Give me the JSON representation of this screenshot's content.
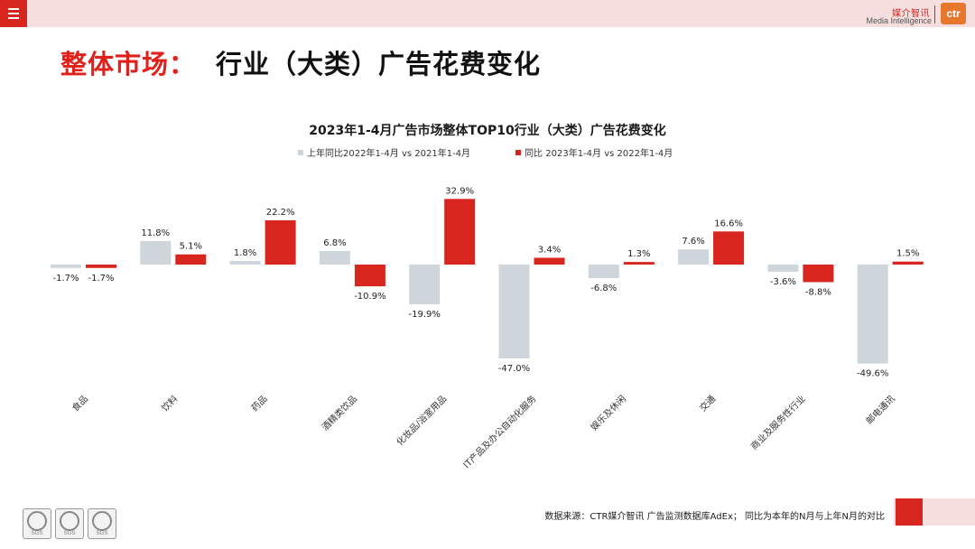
{
  "header": {
    "brand_cn": "媒介智讯",
    "brand_en": "Media Intelligence",
    "brand_logo": "ctr"
  },
  "page_title": {
    "prefix": "整体市场：",
    "main": "行业（大类）广告花费变化"
  },
  "colors": {
    "accent": "#d8261f",
    "series_gray": "#cfd6db",
    "series_red": "#d8261f"
  },
  "chart_data": {
    "type": "bar",
    "title": "2023年1-4月广告市场整体TOP10行业（大类）广告花费变化",
    "categories": [
      "食品",
      "饮料",
      "药品",
      "酒精类饮品",
      "化妆品/浴室用品",
      "IT产品及办公自动化服务",
      "娱乐及休闲",
      "交通",
      "商业及服务性行业",
      "邮电通讯"
    ],
    "series": [
      {
        "name": "上年同比2022年1-4月  vs  2021年1-4月",
        "color": "#cfd6db",
        "values": [
          -1.7,
          11.8,
          1.8,
          6.8,
          -19.9,
          -47.0,
          -6.8,
          7.6,
          -3.6,
          -49.6
        ],
        "labels": [
          "-1.7%",
          "11.8%",
          "1.8%",
          "6.8%",
          "-19.9%",
          "-47.0%",
          "-6.8%",
          "7.6%",
          "-3.6%",
          "-49.6%"
        ]
      },
      {
        "name": "同比 2023年1-4月  vs  2022年1-4月",
        "color": "#d8261f",
        "values": [
          -1.7,
          5.1,
          22.2,
          -10.9,
          32.9,
          3.4,
          1.3,
          16.6,
          -8.8,
          1.5
        ],
        "labels": [
          "-1.7%",
          "5.1%",
          "22.2%",
          "-10.9%",
          "32.9%",
          "3.4%",
          "1.3%",
          "16.6%",
          "-8.8%",
          "1.5%"
        ]
      }
    ],
    "ylabel": "",
    "xlabel": "",
    "ylim": [
      -50,
      35
    ],
    "legend": "top",
    "grid": false
  },
  "footer": {
    "note": "数据来源：CTR媒介智讯 广告监测数据库AdEx；  同比为本年的N月与上年N月的对比",
    "badge_label": "SGS"
  }
}
